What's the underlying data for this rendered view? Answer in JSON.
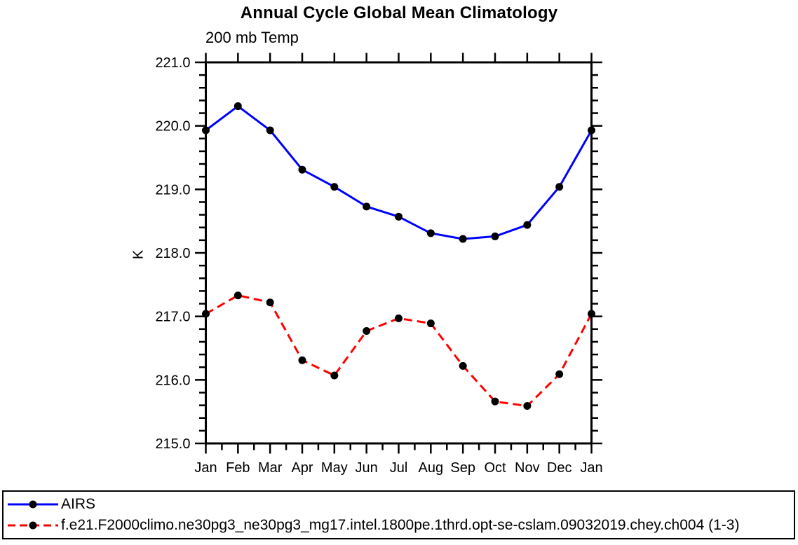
{
  "page": {
    "background_color": "#ffffff",
    "text_color": "#000000"
  },
  "chart_data": {
    "type": "line",
    "title": "Annual Cycle Global Mean Climatology",
    "subtitle": "200 mb Temp",
    "xlabel": "",
    "ylabel": "K",
    "ylim": [
      215.0,
      221.0
    ],
    "y_major_step": 1.0,
    "y_minor_step": 0.2,
    "y_tick_labels": [
      "215.0",
      "216.0",
      "217.0",
      "218.0",
      "219.0",
      "220.0",
      "221.0"
    ],
    "x_tick_labels": [
      "Jan",
      "Feb",
      "Mar",
      "Apr",
      "May",
      "Jun",
      "Jul",
      "Aug",
      "Sep",
      "Oct",
      "Nov",
      "Dec",
      "Jan"
    ],
    "grid": false,
    "legend_position": "bottom",
    "axis_color": "#000000",
    "marker_shape": "filled-circle",
    "series": [
      {
        "name": "AIRS",
        "color": "#0000ff",
        "style": "solid",
        "marker_color": "#000000",
        "values": [
          219.93,
          220.31,
          219.93,
          219.31,
          219.04,
          218.73,
          218.57,
          218.31,
          218.22,
          218.26,
          218.44,
          219.04,
          219.93
        ]
      },
      {
        "name": "f.e21.F2000climo.ne30pg3_ne30pg3_mg17.intel.1800pe.1thrd.opt-se-cslam.09032019.chey.ch004 (1-3)",
        "color": "#ff0000",
        "style": "dashed",
        "marker_color": "#000000",
        "values": [
          217.04,
          217.33,
          217.22,
          216.31,
          216.07,
          216.77,
          216.97,
          216.89,
          216.22,
          215.66,
          215.59,
          216.09,
          217.04
        ]
      }
    ]
  }
}
